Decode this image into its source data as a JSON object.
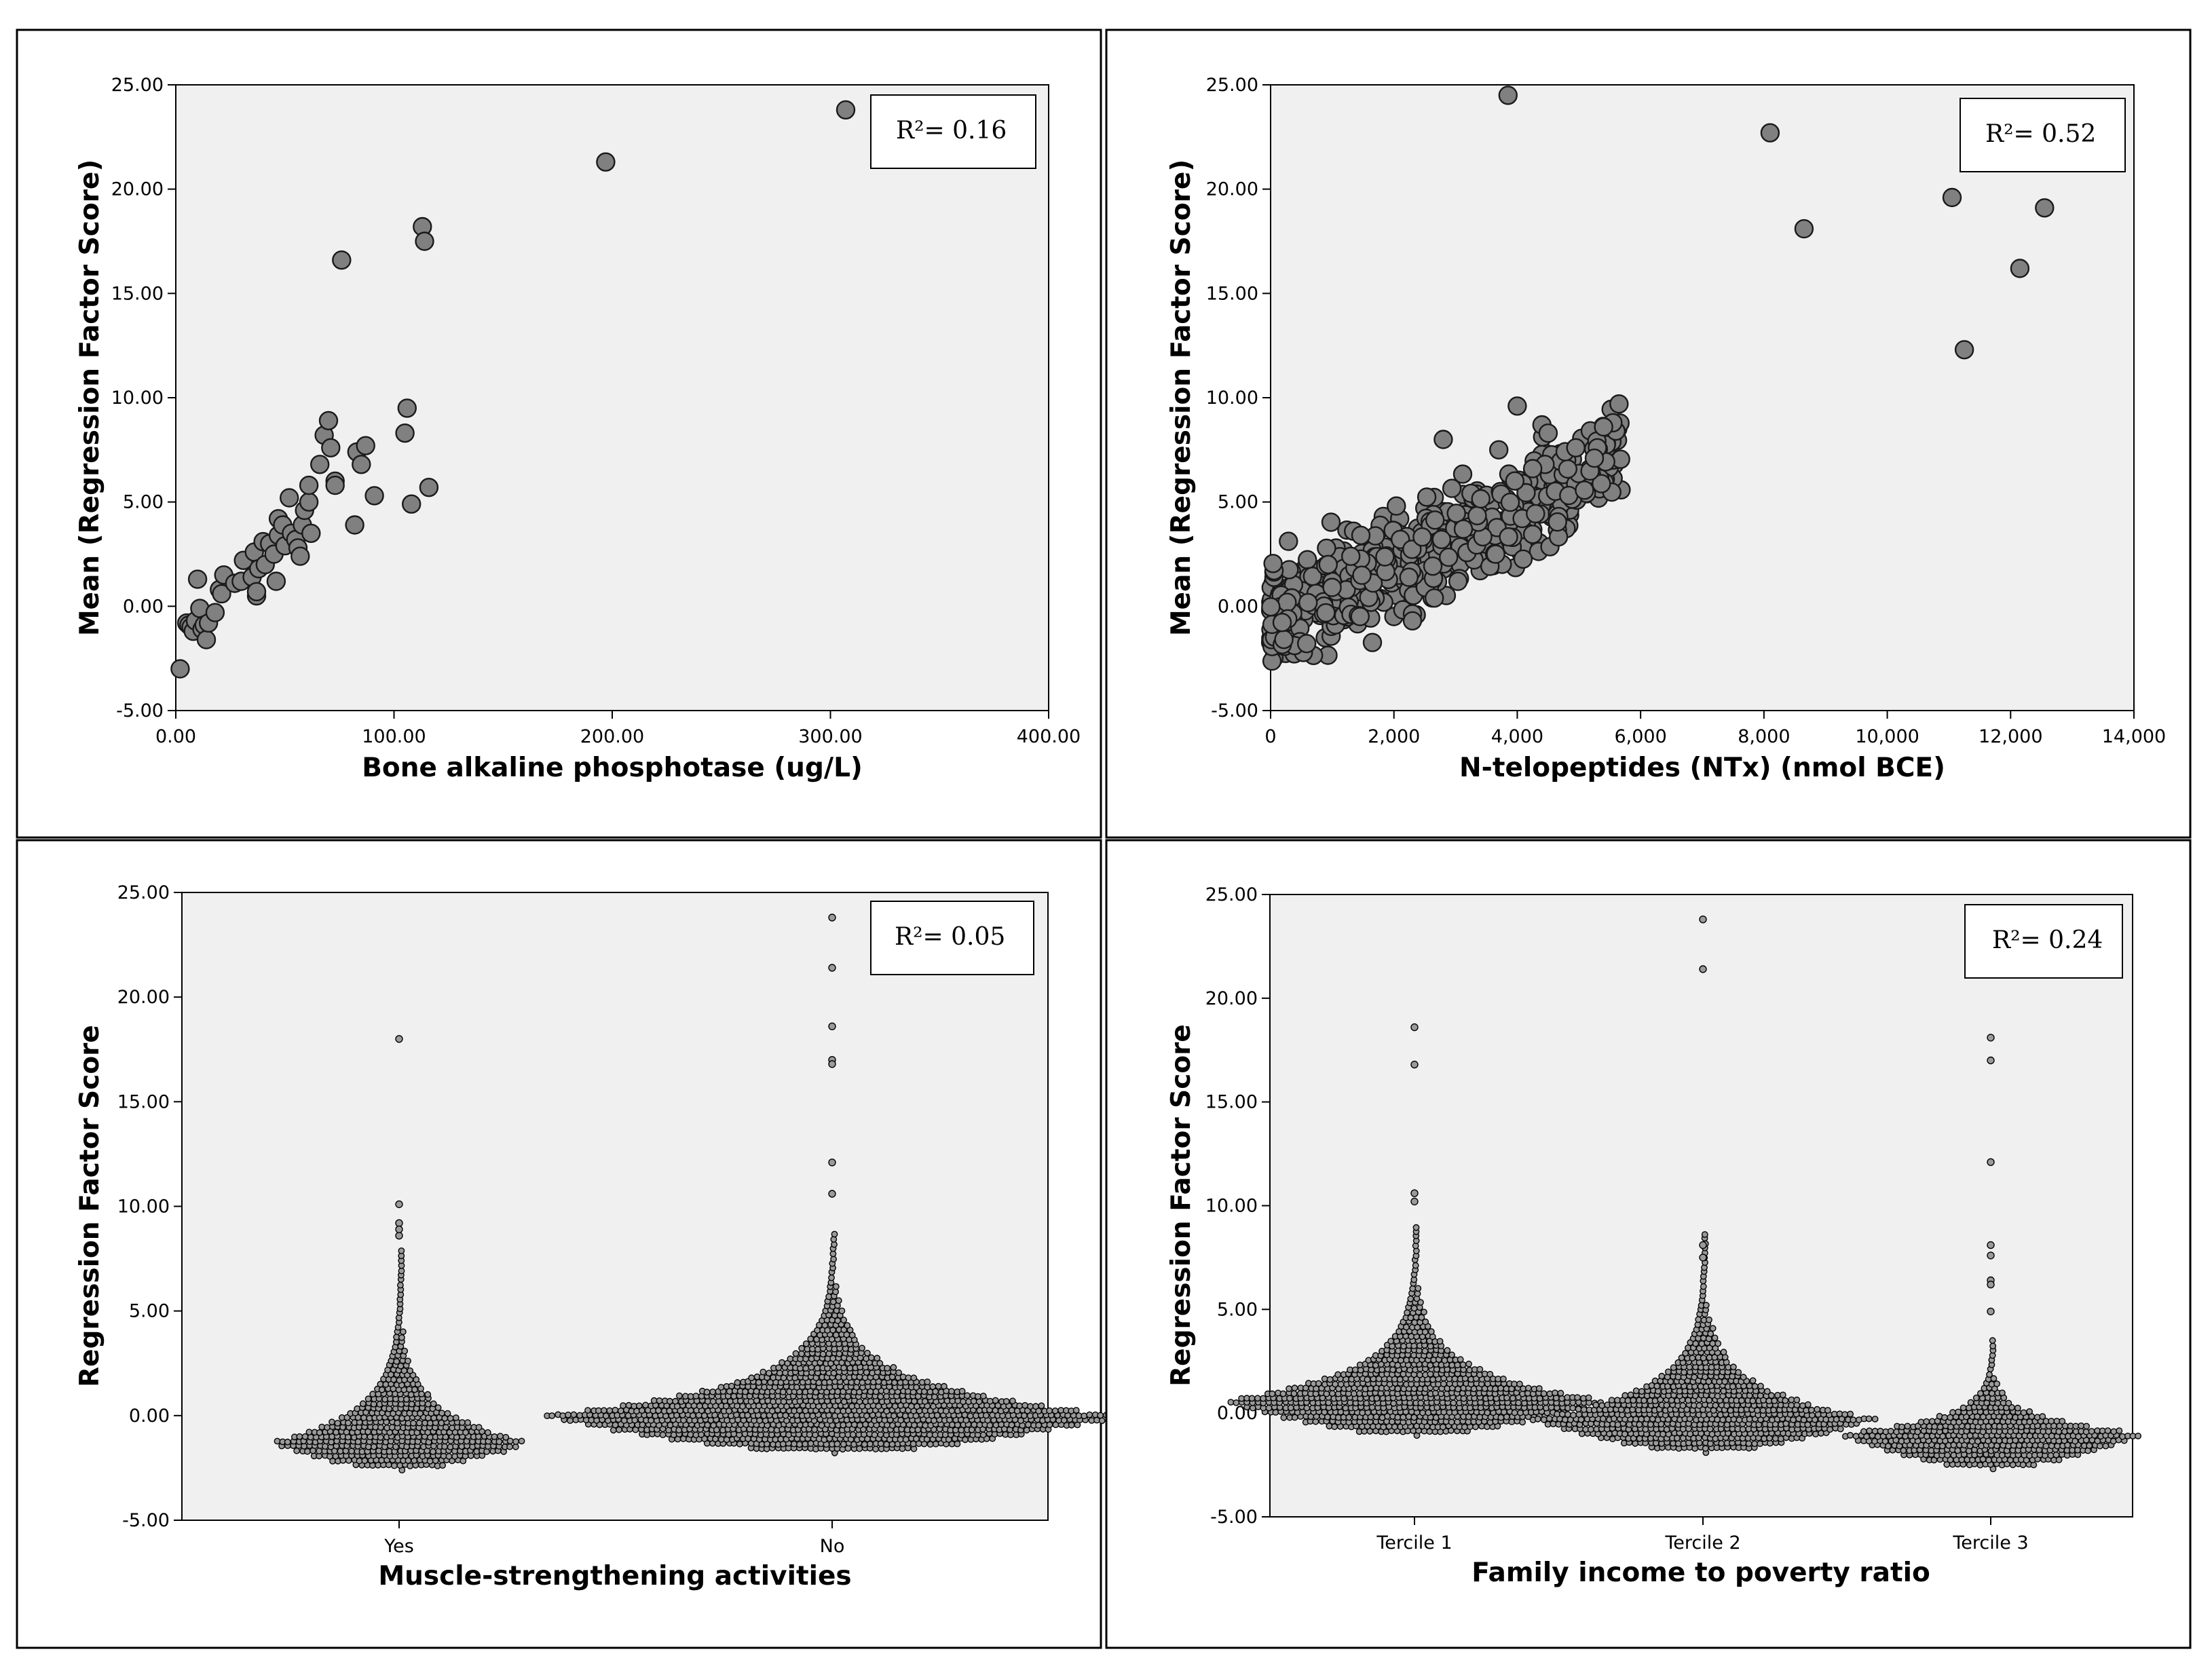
{
  "chart_data": [
    {
      "id": "p1",
      "type": "scatter",
      "title": "",
      "xlabel": "Bone alkaline phosphotase (ug/L)",
      "ylabel": "Mean (Regression Factor Score)",
      "xlim": [
        0,
        400
      ],
      "ylim": [
        -5,
        25
      ],
      "xticks": [
        0,
        100,
        200,
        300,
        400
      ],
      "xtick_labels": [
        "0.00",
        "100.00",
        "200.00",
        "300.00",
        "400.00"
      ],
      "yticks": [
        -5,
        0,
        5,
        10,
        15,
        20,
        25
      ],
      "ytick_labels": [
        "-5.00",
        "0.00",
        "5.00",
        "10.00",
        "15.00",
        "20.00",
        "25.00"
      ],
      "r2_label": "R²= 0.16",
      "points": [
        [
          2,
          -3.0
        ],
        [
          5,
          -0.8
        ],
        [
          6,
          -0.9
        ],
        [
          7,
          -1.0
        ],
        [
          8,
          -1.2
        ],
        [
          9,
          -0.7
        ],
        [
          11,
          -0.1
        ],
        [
          10,
          1.3
        ],
        [
          12,
          -1.1
        ],
        [
          13,
          -0.9
        ],
        [
          14,
          -1.6
        ],
        [
          15,
          -0.8
        ],
        [
          18,
          -0.3
        ],
        [
          20,
          0.8
        ],
        [
          21,
          0.6
        ],
        [
          22,
          1.5
        ],
        [
          27,
          1.1
        ],
        [
          30,
          1.2
        ],
        [
          31,
          2.2
        ],
        [
          35,
          1.4
        ],
        [
          36,
          2.6
        ],
        [
          37,
          0.5
        ],
        [
          37,
          0.7
        ],
        [
          38,
          1.8
        ],
        [
          40,
          3.1
        ],
        [
          41,
          2.0
        ],
        [
          43,
          3.0
        ],
        [
          45,
          2.5
        ],
        [
          46,
          1.2
        ],
        [
          47,
          3.4
        ],
        [
          47,
          4.2
        ],
        [
          49,
          3.9
        ],
        [
          50,
          2.9
        ],
        [
          52,
          5.2
        ],
        [
          53,
          3.5
        ],
        [
          55,
          3.2
        ],
        [
          56,
          2.8
        ],
        [
          57,
          2.4
        ],
        [
          58,
          3.9
        ],
        [
          59,
          4.6
        ],
        [
          61,
          5.0
        ],
        [
          61,
          5.8
        ],
        [
          62,
          3.5
        ],
        [
          66,
          6.8
        ],
        [
          68,
          8.2
        ],
        [
          70,
          8.9
        ],
        [
          71,
          7.6
        ],
        [
          73,
          6.0
        ],
        [
          73,
          5.8
        ],
        [
          76,
          16.6
        ],
        [
          82,
          3.9
        ],
        [
          83,
          7.4
        ],
        [
          85,
          6.8
        ],
        [
          87,
          7.7
        ],
        [
          91,
          5.3
        ],
        [
          105,
          8.3
        ],
        [
          106,
          9.5
        ],
        [
          108,
          4.9
        ],
        [
          113,
          18.2
        ],
        [
          114,
          17.5
        ],
        [
          116,
          5.7
        ],
        [
          197,
          21.3
        ],
        [
          307,
          23.8
        ]
      ]
    },
    {
      "id": "p2",
      "type": "scatter",
      "title": "",
      "xlabel": "N-telopeptides (NTx) (nmol BCE)",
      "ylabel": "Mean (Regression Factor Score)",
      "xlim": [
        0,
        14000
      ],
      "ylim": [
        -5,
        25
      ],
      "xticks": [
        0,
        2000,
        4000,
        6000,
        8000,
        10000,
        12000,
        14000
      ],
      "xtick_labels": [
        "0",
        "2,000",
        "4,000",
        "6,000",
        "8,000",
        "10,000",
        "12,000",
        "14,000"
      ],
      "yticks": [
        -5,
        0,
        5,
        10,
        15,
        20,
        25
      ],
      "ytick_labels": [
        "-5.00",
        "0.00",
        "5.00",
        "10.00",
        "15.00",
        "20.00",
        "25.00"
      ],
      "r2_label": "R²= 0.52",
      "cloud": {
        "x_range": [
          0,
          5700
        ],
        "slope_per_1000": 1.35,
        "intercept": -0.8,
        "spread": 2.2,
        "n": 560
      },
      "points": [
        [
          3850,
          24.5
        ],
        [
          8100,
          22.7
        ],
        [
          8650,
          18.1
        ],
        [
          11050,
          19.6
        ],
        [
          11250,
          12.3
        ],
        [
          12150,
          16.2
        ],
        [
          12550,
          19.1
        ],
        [
          5650,
          9.7
        ],
        [
          4000,
          9.6
        ],
        [
          5600,
          8.4
        ],
        [
          5550,
          8.8
        ],
        [
          5400,
          8.6
        ],
        [
          5300,
          7.6
        ],
        [
          4400,
          8.7
        ],
        [
          4500,
          8.3
        ],
        [
          3700,
          7.5
        ],
        [
          2800,
          8.0
        ],
        [
          4450,
          6.8
        ],
        [
          4950,
          7.6
        ],
        [
          2300,
          -0.7
        ],
        [
          4250,
          6.6
        ],
        [
          5250,
          7.1
        ],
        [
          3650,
          2.5
        ]
      ]
    },
    {
      "id": "p3",
      "type": "dot-density",
      "title": "",
      "xlabel": "Muscle-strengthening activities",
      "ylabel": "Regression Factor Score",
      "categories": [
        "Yes",
        "No"
      ],
      "ylim": [
        -5,
        25
      ],
      "yticks": [
        -5,
        0,
        5,
        10,
        15,
        20,
        25
      ],
      "ytick_labels": [
        "-5.00",
        "0.00",
        "5.00",
        "10.00",
        "15.00",
        "20.00",
        "25.00"
      ],
      "r2_label": "R²= 0.05",
      "groups": [
        {
          "category": "Yes",
          "bulk_min": -2.6,
          "bulk_max": 8.0,
          "mode": -1.3,
          "half_width": 3.3,
          "outliers": [
            18.0,
            10.1,
            9.2,
            8.6,
            8.9
          ]
        },
        {
          "category": "No",
          "bulk_min": -1.8,
          "bulk_max": 8.8,
          "mode": 0.0,
          "half_width": 7.4,
          "outliers": [
            23.8,
            21.4,
            18.6,
            17.0,
            16.8,
            12.1,
            10.6
          ]
        }
      ]
    },
    {
      "id": "p4",
      "type": "dot-density",
      "title": "",
      "xlabel": "Family income to poverty ratio",
      "ylabel": "Regression Factor Score",
      "categories": [
        "Tercile 1",
        "Tercile 2",
        "Tercile 3"
      ],
      "ylim": [
        -5,
        25
      ],
      "yticks": [
        -5,
        0,
        5,
        10,
        15,
        20,
        25
      ],
      "ytick_labels": [
        "-5.00",
        "0.00",
        "5.00",
        "10.00",
        "15.00",
        "20.00",
        "25.00"
      ],
      "r2_label": "R²= 0.24",
      "groups": [
        {
          "category": "Tercile 1",
          "bulk_min": -1.1,
          "bulk_max": 9.2,
          "mode": 0.6,
          "half_width": 4.9,
          "outliers": [
            18.6,
            16.8,
            10.6,
            10.2
          ]
        },
        {
          "category": "Tercile 2",
          "bulk_min": -1.9,
          "bulk_max": 8.7,
          "mode": -0.3,
          "half_width": 4.4,
          "outliers": [
            23.8,
            21.4,
            8.1,
            7.5
          ]
        },
        {
          "category": "Tercile 3",
          "bulk_min": -2.7,
          "bulk_max": 3.7,
          "mode": -1.0,
          "half_width": 3.9,
          "outliers": [
            18.1,
            17.0,
            12.1,
            8.1,
            7.6,
            6.4,
            6.2,
            4.9
          ]
        }
      ]
    }
  ]
}
